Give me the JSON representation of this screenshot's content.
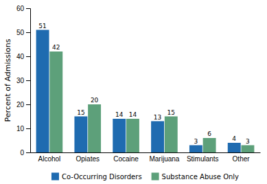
{
  "chart_data": {
    "type": "bar",
    "ylabel": "Percent of Admissions",
    "categories": [
      "Alcohol",
      "Opiates",
      "Cocaine",
      "Marijuana",
      "Stimulants",
      "Other"
    ],
    "series": [
      {
        "name": "Co-Occurring Disorders",
        "color": "#1F6BB0",
        "values": [
          51,
          15,
          14,
          13,
          3,
          4
        ]
      },
      {
        "name": "Substance Abuse Only",
        "color": "#5DA07A",
        "values": [
          42,
          20,
          14,
          15,
          6,
          3
        ]
      }
    ],
    "ylim": [
      0,
      60
    ],
    "yticks": [
      0,
      10,
      20,
      30,
      40,
      50,
      60
    ],
    "grid": false,
    "legend": "bottom",
    "data_labels": true
  }
}
